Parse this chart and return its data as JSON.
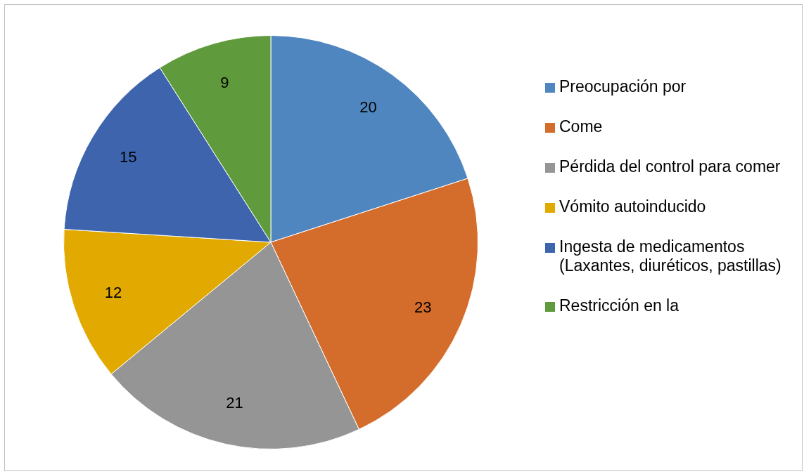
{
  "chart_data": {
    "type": "pie",
    "categories": [
      "Preocupación por",
      "Come",
      "Pérdida del control para comer",
      "Vómito autoinducido",
      "Ingesta de medicamentos (Laxantes, diuréticos, pastillas)",
      "Restricción en la"
    ],
    "values": [
      20,
      23,
      21,
      12,
      15,
      9
    ],
    "colors": [
      "#4f86bf",
      "#d46c2b",
      "#959595",
      "#e2aa00",
      "#3d64ad",
      "#5f9b3c"
    ],
    "data_labels": true,
    "legend": "right"
  }
}
